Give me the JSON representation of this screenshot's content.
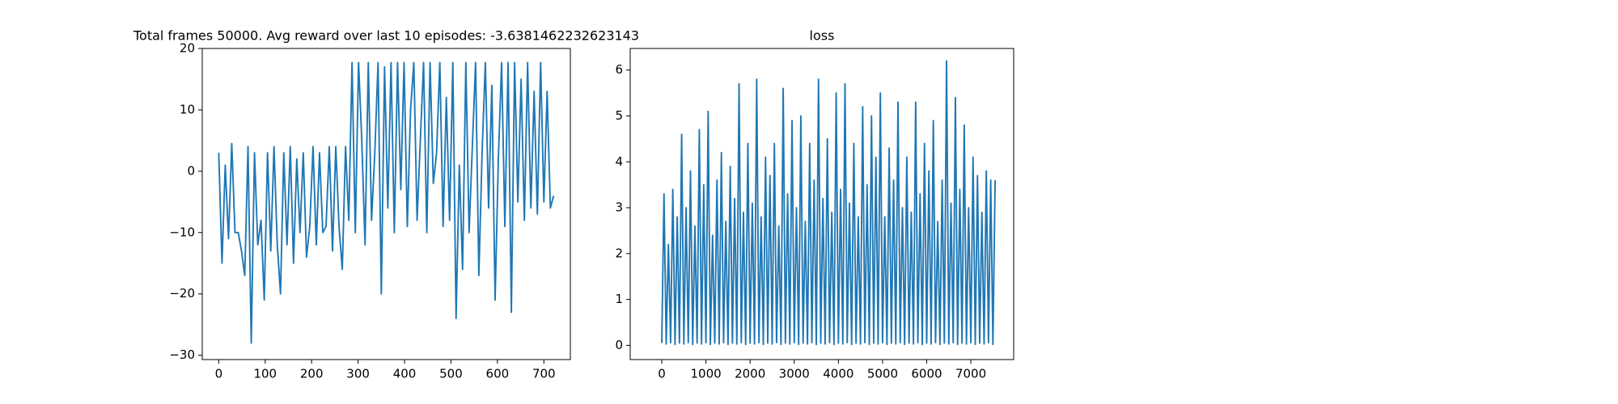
{
  "chart_data": [
    {
      "type": "line",
      "title": "Total frames 50000. Avg reward over last 10 episodes: -3.6381462232623143",
      "color": "#1f77b4",
      "x": [
        0,
        7,
        14,
        21,
        28,
        35,
        42,
        49,
        56,
        63,
        70,
        77,
        84,
        91,
        98,
        105,
        112,
        119,
        126,
        133,
        140,
        147,
        154,
        161,
        168,
        175,
        182,
        189,
        196,
        203,
        210,
        217,
        224,
        231,
        238,
        245,
        252,
        259,
        266,
        273,
        280,
        287,
        294,
        301,
        308,
        315,
        322,
        329,
        336,
        343,
        350,
        357,
        364,
        371,
        378,
        385,
        392,
        399,
        406,
        413,
        420,
        427,
        434,
        441,
        448,
        455,
        462,
        469,
        476,
        483,
        490,
        497,
        504,
        511,
        518,
        525,
        532,
        539,
        546,
        553,
        560,
        567,
        574,
        581,
        588,
        595,
        602,
        609,
        616,
        623,
        630,
        637,
        644,
        651,
        658,
        665,
        672,
        679,
        686,
        693,
        700,
        707,
        714,
        721
      ],
      "values": [
        3,
        -15,
        1,
        -11,
        4.5,
        -10,
        -10,
        -13,
        -17,
        4,
        -28,
        3,
        -12,
        -8,
        -21,
        3,
        -13,
        4,
        -12,
        -20,
        3,
        -12,
        4,
        -15,
        2,
        -10,
        3,
        -14,
        -9,
        4,
        -12,
        3,
        -10,
        -9,
        4,
        -13,
        4,
        -9,
        -16,
        4,
        -8,
        17.7,
        -10,
        17.7,
        5,
        -12,
        17.7,
        -8,
        3,
        17.7,
        -20,
        17,
        -6,
        17.7,
        -10,
        17.7,
        -3,
        17.7,
        -9,
        10,
        17.7,
        -8,
        5,
        17.7,
        -10,
        17.7,
        -2,
        3,
        17.7,
        -9,
        12,
        -8,
        17.7,
        -24,
        1,
        -16,
        17.7,
        -10,
        4,
        17.7,
        -17,
        3,
        17.7,
        -6,
        14,
        -21,
        2,
        17.7,
        -9,
        17.7,
        -23,
        17.7,
        -5,
        15,
        -8,
        17.7,
        -6,
        13,
        -7,
        17.7,
        -5,
        13,
        -6,
        -4
      ],
      "xlim": [
        -35.5,
        757
      ],
      "ylim": [
        -30.7,
        20
      ],
      "xticks": [
        0,
        100,
        200,
        300,
        400,
        500,
        600,
        700
      ],
      "yticks": [
        {
          "value": -30,
          "label": "−30"
        },
        {
          "value": -20,
          "label": "−20"
        },
        {
          "value": -10,
          "label": "−10"
        },
        0,
        10,
        20
      ]
    },
    {
      "type": "line",
      "title": "loss",
      "color": "#1f77b4",
      "x": [
        0,
        50,
        100,
        150,
        200,
        250,
        300,
        350,
        400,
        450,
        500,
        550,
        600,
        650,
        700,
        750,
        800,
        850,
        900,
        950,
        1000,
        1050,
        1100,
        1150,
        1200,
        1250,
        1300,
        1350,
        1400,
        1450,
        1500,
        1550,
        1600,
        1650,
        1700,
        1750,
        1800,
        1850,
        1900,
        1950,
        2000,
        2050,
        2100,
        2150,
        2200,
        2250,
        2300,
        2350,
        2400,
        2450,
        2500,
        2550,
        2600,
        2650,
        2700,
        2750,
        2800,
        2850,
        2900,
        2950,
        3000,
        3050,
        3100,
        3150,
        3200,
        3250,
        3300,
        3350,
        3400,
        3450,
        3500,
        3550,
        3600,
        3650,
        3700,
        3750,
        3800,
        3850,
        3900,
        3950,
        4000,
        4050,
        4100,
        4150,
        4200,
        4250,
        4300,
        4350,
        4400,
        4450,
        4500,
        4550,
        4600,
        4650,
        4700,
        4750,
        4800,
        4850,
        4900,
        4950,
        5000,
        5050,
        5100,
        5150,
        5200,
        5250,
        5300,
        5350,
        5400,
        5450,
        5500,
        5550,
        5600,
        5650,
        5700,
        5750,
        5800,
        5850,
        5900,
        5950,
        6000,
        6050,
        6100,
        6150,
        6200,
        6250,
        6300,
        6350,
        6400,
        6450,
        6500,
        6550,
        6600,
        6650,
        6700,
        6750,
        6800,
        6850,
        6900,
        6950,
        7000,
        7050,
        7100,
        7150,
        7200,
        7250,
        7300,
        7350,
        7400,
        7450,
        7500,
        7550
      ],
      "values": [
        0.05,
        3.3,
        0.03,
        2.2,
        0.06,
        3.4,
        0.02,
        2.8,
        0.05,
        4.6,
        0.03,
        3.0,
        0.06,
        3.8,
        0.02,
        2.6,
        0.05,
        4.7,
        0.03,
        3.5,
        0.06,
        5.1,
        0.02,
        2.4,
        0.05,
        3.6,
        0.03,
        4.2,
        0.06,
        2.7,
        0.02,
        3.9,
        0.05,
        3.2,
        0.03,
        5.7,
        0.06,
        2.9,
        0.02,
        4.4,
        0.05,
        3.1,
        0.03,
        5.8,
        0.06,
        2.8,
        0.02,
        4.1,
        0.05,
        3.7,
        0.03,
        4.4,
        0.06,
        2.6,
        0.02,
        5.6,
        0.05,
        3.3,
        0.03,
        4.9,
        0.06,
        3.0,
        0.02,
        5.0,
        0.05,
        2.7,
        0.03,
        4.4,
        0.06,
        3.6,
        0.02,
        5.8,
        0.05,
        3.2,
        0.03,
        4.5,
        0.06,
        2.9,
        0.02,
        5.5,
        0.05,
        3.4,
        0.03,
        5.7,
        0.06,
        3.1,
        0.02,
        4.4,
        0.05,
        2.8,
        0.03,
        5.2,
        0.06,
        3.5,
        0.02,
        5.0,
        0.05,
        4.1,
        0.03,
        5.5,
        0.06,
        2.8,
        0.02,
        4.3,
        0.05,
        3.6,
        0.03,
        5.3,
        0.06,
        3.0,
        0.02,
        4.1,
        0.05,
        2.9,
        0.03,
        5.3,
        0.06,
        3.3,
        0.02,
        4.4,
        0.05,
        3.8,
        0.03,
        4.9,
        0.06,
        2.7,
        0.02,
        3.6,
        0.05,
        6.2,
        0.03,
        3.1,
        0.06,
        5.4,
        0.02,
        3.4,
        0.05,
        4.8,
        0.03,
        3.0,
        0.06,
        4.1,
        0.02,
        3.7,
        0.05,
        2.9,
        0.03,
        3.8,
        0.06,
        3.6,
        0.02,
        3.6
      ],
      "xlim": [
        -715,
        7970
      ],
      "ylim": [
        -0.31,
        6.47
      ],
      "xticks": [
        0,
        1000,
        2000,
        3000,
        4000,
        5000,
        6000,
        7000
      ],
      "yticks": [
        0,
        1,
        2,
        3,
        4,
        5,
        6
      ]
    }
  ]
}
